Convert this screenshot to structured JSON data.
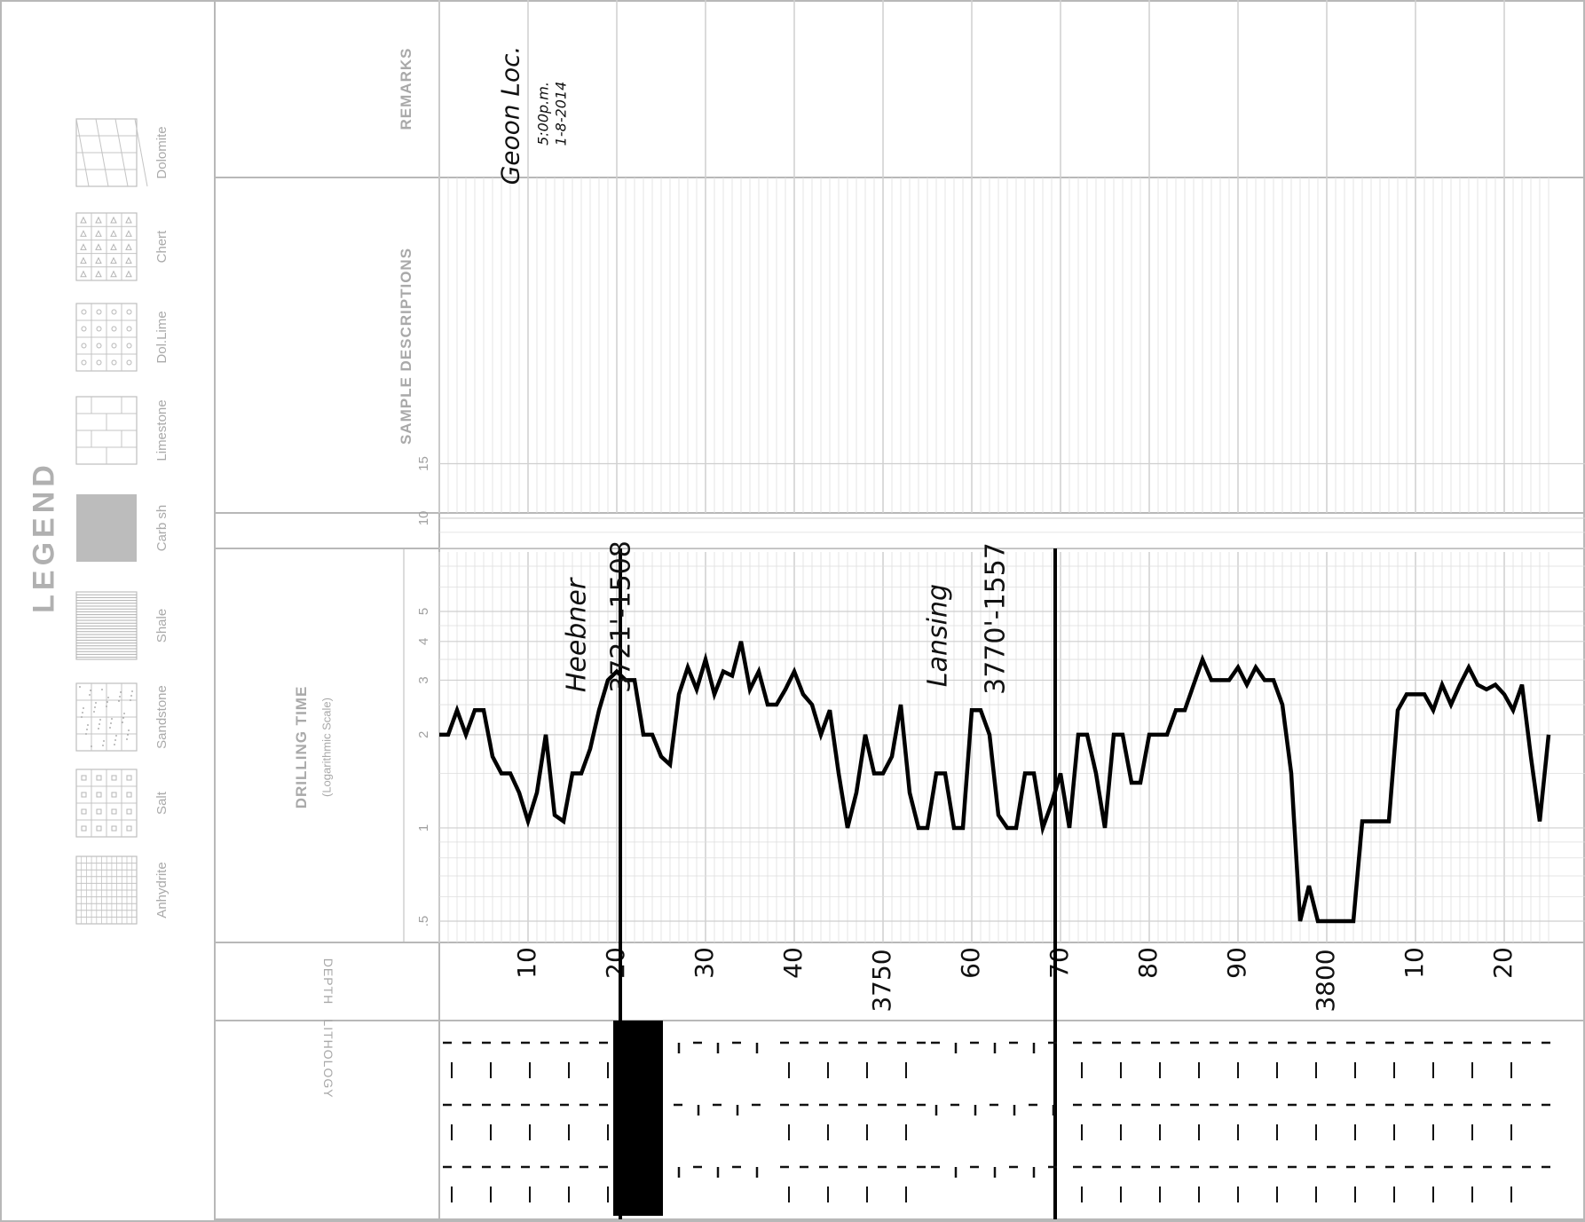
{
  "legend": {
    "title": "LEGEND",
    "items": [
      {
        "label": "Anhydrite",
        "icon": "anhydrite-pattern-icon"
      },
      {
        "label": "Salt",
        "icon": "salt-pattern-icon"
      },
      {
        "label": "Sandstone",
        "icon": "sandstone-pattern-icon"
      },
      {
        "label": "Shale",
        "icon": "shale-pattern-icon"
      },
      {
        "label": "Carb sh",
        "icon": "carb-shale-pattern-icon"
      },
      {
        "label": "Limestone",
        "icon": "limestone-pattern-icon"
      },
      {
        "label": "Dol.Lime",
        "icon": "dol-lime-pattern-icon"
      },
      {
        "label": "Chert",
        "icon": "chert-pattern-icon"
      },
      {
        "label": "Dolomite",
        "icon": "dolomite-pattern-icon"
      }
    ]
  },
  "headers": {
    "remarks": "REMARKS",
    "sample_descriptions": "SAMPLE DESCRIPTIONS",
    "drilling_time": "DRILLING TIME",
    "drilling_time_sub": "(Logarithmic Scale)",
    "depth": "DEPTH",
    "lithology": "LITHOLOGY"
  },
  "remarks_note": {
    "line1": "Geoon Loc.",
    "line2": "5:00p.m.",
    "line3": "1-8-2014"
  },
  "formation_tops": [
    {
      "name": "Heebner",
      "value": "3721'-1508",
      "depth": 3721
    },
    {
      "name": "Lansing",
      "value": "3770'-1557",
      "depth": 3770
    }
  ],
  "chart_data": {
    "type": "line",
    "title": "",
    "xlabel": "DEPTH",
    "ylabel": "DRILLING TIME",
    "y_scale": "log",
    "y_ticks": [
      ".5",
      "1",
      "2",
      "3",
      "4",
      "5",
      "10",
      "15"
    ],
    "x_ticks": [
      "10",
      "20",
      "30",
      "40",
      "3750",
      "60",
      "70",
      "80",
      "90",
      "3800",
      "10",
      "20"
    ],
    "x_range": [
      3700,
      3825
    ],
    "y_range": [
      0.4,
      20
    ],
    "x": [
      3700,
      3701,
      3702,
      3703,
      3704,
      3705,
      3706,
      3707,
      3708,
      3709,
      3710,
      3711,
      3712,
      3713,
      3714,
      3715,
      3716,
      3717,
      3718,
      3719,
      3720,
      3721,
      3722,
      3723,
      3724,
      3725,
      3726,
      3727,
      3728,
      3729,
      3730,
      3731,
      3732,
      3733,
      3734,
      3735,
      3736,
      3737,
      3738,
      3739,
      3740,
      3741,
      3742,
      3743,
      3744,
      3745,
      3746,
      3747,
      3748,
      3749,
      3750,
      3751,
      3752,
      3753,
      3754,
      3755,
      3756,
      3757,
      3758,
      3759,
      3760,
      3761,
      3762,
      3763,
      3764,
      3765,
      3766,
      3767,
      3768,
      3769,
      3770,
      3771,
      3772,
      3773,
      3774,
      3775,
      3776,
      3777,
      3778,
      3779,
      3780,
      3781,
      3782,
      3783,
      3784,
      3785,
      3786,
      3787,
      3788,
      3789,
      3790,
      3791,
      3792,
      3793,
      3794,
      3795,
      3796,
      3797,
      3798,
      3799,
      3800,
      3801,
      3802,
      3803,
      3804,
      3805,
      3806,
      3807,
      3808,
      3809,
      3810,
      3811,
      3812,
      3813,
      3814,
      3815,
      3816,
      3817,
      3818,
      3819,
      3820,
      3821,
      3822,
      3823,
      3824,
      3825
    ],
    "series": [
      {
        "values": [
          2.0,
          2.0,
          2.4,
          2.0,
          2.4,
          2.4,
          1.7,
          1.5,
          1.5,
          1.3,
          1.05,
          1.3,
          2.0,
          1.1,
          1.05,
          1.5,
          1.5,
          1.8,
          2.4,
          3.0,
          3.2,
          3.0,
          3.0,
          2.0,
          2.0,
          1.7,
          1.6,
          2.7,
          3.3,
          2.8,
          3.5,
          2.7,
          3.2,
          3.1,
          4.0,
          2.8,
          3.2,
          2.5,
          2.5,
          2.8,
          3.2,
          2.7,
          2.5,
          2.0,
          2.4,
          1.5,
          1.0,
          1.3,
          2.0,
          1.5,
          1.5,
          1.7,
          2.5,
          1.3,
          1.0,
          1.0,
          1.5,
          1.5,
          1.0,
          1.0,
          2.4,
          2.4,
          2.0,
          1.1,
          1.0,
          1.0,
          1.5,
          1.5,
          1.0,
          1.2,
          1.5,
          1.0,
          2.0,
          2.0,
          1.5,
          1.0,
          2.0,
          2.0,
          1.4,
          1.4,
          2.0,
          2.0,
          2.0,
          2.4,
          2.4,
          2.9,
          3.5,
          3.0,
          3.0,
          3.0,
          3.3,
          2.9,
          3.3,
          3.0,
          3.0,
          2.5,
          1.5,
          0.5,
          0.65,
          0.5,
          0.5,
          0.5,
          0.5,
          0.5,
          1.05,
          1.05,
          1.05,
          1.05,
          2.4,
          2.7,
          2.7,
          2.7,
          2.4,
          2.9,
          2.5,
          2.9,
          3.3,
          2.9,
          2.8,
          2.9,
          2.7,
          2.4,
          2.9,
          1.7,
          1.05,
          2.0
        ]
      }
    ],
    "grid": true
  },
  "lithology": {
    "segments": [
      {
        "depth_from": 3700,
        "depth_to": 3720,
        "type": "limestone"
      },
      {
        "depth_from": 3720,
        "depth_to": 3726,
        "type": "carb-shale"
      },
      {
        "depth_from": 3726,
        "depth_to": 3738,
        "type": "sandy-limestone"
      },
      {
        "depth_from": 3738,
        "depth_to": 3755,
        "type": "limestone"
      },
      {
        "depth_from": 3755,
        "depth_to": 3771,
        "type": "sandy-limestone"
      },
      {
        "depth_from": 3771,
        "depth_to": 3825,
        "type": "limestone"
      }
    ]
  }
}
